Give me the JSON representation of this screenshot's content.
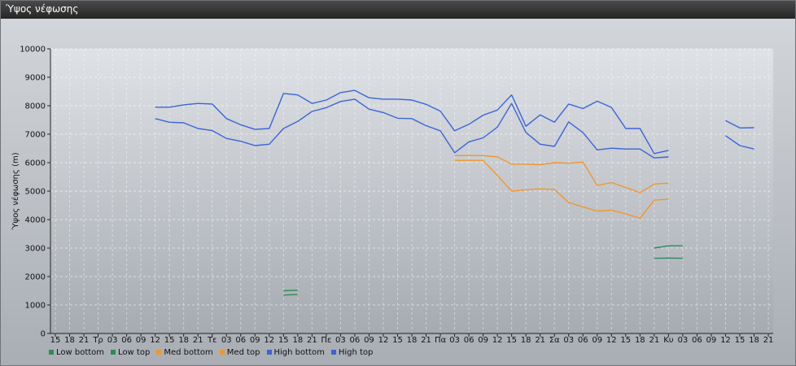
{
  "window": {
    "title": "Ύψος νέφωσης"
  },
  "colors": {
    "low": "#2e8b57",
    "med": "#f0962e",
    "high": "#3b64d8"
  },
  "chart_data": {
    "type": "line",
    "title": "",
    "ylabel": "Ύψος νέφωσης (m)",
    "xlabel": "",
    "ylim": [
      0,
      10000
    ],
    "yticks": [
      0,
      1000,
      2000,
      3000,
      4000,
      5000,
      6000,
      7000,
      8000,
      9000,
      10000
    ],
    "grid": true,
    "legend_position": "bottom-left",
    "x_labels": [
      "15",
      "18",
      "21",
      "Τρ",
      "03",
      "06",
      "09",
      "12",
      "15",
      "18",
      "21",
      "Τε",
      "03",
      "06",
      "09",
      "12",
      "15",
      "18",
      "21",
      "Πε",
      "03",
      "06",
      "09",
      "12",
      "15",
      "18",
      "21",
      "Πα",
      "03",
      "06",
      "09",
      "12",
      "15",
      "18",
      "21",
      "Σα",
      "03",
      "06",
      "09",
      "12",
      "15",
      "18",
      "21",
      "Κυ",
      "03",
      "06",
      "09",
      "12",
      "15",
      "18",
      "21"
    ],
    "series": [
      {
        "name": "Low bottom",
        "color": "#2e8b57",
        "segments": [
          [
            [
              16,
              1350
            ],
            [
              17,
              1370
            ]
          ],
          [
            [
              42,
              2640
            ],
            [
              43,
              2650
            ],
            [
              44,
              2640
            ]
          ]
        ]
      },
      {
        "name": "Low top",
        "color": "#2e8b57",
        "segments": [
          [
            [
              16,
              1500
            ],
            [
              17,
              1520
            ]
          ],
          [
            [
              42,
              3000
            ],
            [
              43,
              3080
            ],
            [
              44,
              3080
            ]
          ]
        ]
      },
      {
        "name": "Med bottom",
        "color": "#f0962e",
        "segments": [
          [
            [
              28,
              6080
            ],
            [
              29,
              6080
            ],
            [
              30,
              6080
            ],
            [
              31,
              5550
            ],
            [
              32,
              5000
            ],
            [
              33,
              5050
            ],
            [
              34,
              5080
            ],
            [
              35,
              5060
            ],
            [
              36,
              4600
            ],
            [
              37,
              4450
            ],
            [
              38,
              4300
            ],
            [
              39,
              4330
            ],
            [
              40,
              4200
            ],
            [
              41,
              4050
            ],
            [
              42,
              4680
            ],
            [
              43,
              4720
            ]
          ]
        ]
      },
      {
        "name": "Med top",
        "color": "#f0962e",
        "segments": [
          [
            [
              28,
              6250
            ],
            [
              29,
              6250
            ],
            [
              30,
              6250
            ],
            [
              31,
              6200
            ],
            [
              32,
              5950
            ],
            [
              33,
              5950
            ],
            [
              34,
              5930
            ],
            [
              35,
              6000
            ],
            [
              36,
              5980
            ],
            [
              37,
              6020
            ],
            [
              38,
              5200
            ],
            [
              39,
              5300
            ],
            [
              40,
              5130
            ],
            [
              41,
              4950
            ],
            [
              42,
              5250
            ],
            [
              43,
              5280
            ]
          ]
        ]
      },
      {
        "name": "High bottom",
        "color": "#3b64d8",
        "segments": [
          [
            [
              7,
              7550
            ],
            [
              8,
              7420
            ],
            [
              9,
              7400
            ],
            [
              10,
              7200
            ],
            [
              11,
              7130
            ],
            [
              12,
              6850
            ],
            [
              13,
              6750
            ],
            [
              14,
              6600
            ],
            [
              15,
              6650
            ],
            [
              16,
              7200
            ],
            [
              17,
              7450
            ],
            [
              18,
              7800
            ],
            [
              19,
              7930
            ],
            [
              20,
              8150
            ],
            [
              21,
              8230
            ],
            [
              22,
              7880
            ],
            [
              23,
              7760
            ],
            [
              24,
              7560
            ],
            [
              25,
              7550
            ],
            [
              26,
              7300
            ],
            [
              27,
              7120
            ],
            [
              28,
              6350
            ],
            [
              29,
              6730
            ],
            [
              30,
              6870
            ],
            [
              31,
              7250
            ],
            [
              32,
              8080
            ],
            [
              33,
              7060
            ],
            [
              34,
              6650
            ],
            [
              35,
              6570
            ],
            [
              36,
              7430
            ],
            [
              37,
              7060
            ],
            [
              38,
              6450
            ],
            [
              39,
              6510
            ],
            [
              40,
              6480
            ],
            [
              41,
              6480
            ],
            [
              42,
              6170
            ],
            [
              43,
              6200
            ]
          ],
          [
            [
              47,
              6950
            ],
            [
              48,
              6600
            ],
            [
              49,
              6480
            ]
          ]
        ]
      },
      {
        "name": "High top",
        "color": "#3b64d8",
        "segments": [
          [
            [
              7,
              7950
            ],
            [
              8,
              7950
            ],
            [
              9,
              8030
            ],
            [
              10,
              8080
            ],
            [
              11,
              8060
            ],
            [
              12,
              7550
            ],
            [
              13,
              7330
            ],
            [
              14,
              7170
            ],
            [
              15,
              7200
            ],
            [
              16,
              8430
            ],
            [
              17,
              8380
            ],
            [
              18,
              8080
            ],
            [
              19,
              8200
            ],
            [
              20,
              8460
            ],
            [
              21,
              8540
            ],
            [
              22,
              8280
            ],
            [
              23,
              8230
            ],
            [
              24,
              8230
            ],
            [
              25,
              8200
            ],
            [
              26,
              8050
            ],
            [
              27,
              7810
            ],
            [
              28,
              7120
            ],
            [
              29,
              7350
            ],
            [
              30,
              7670
            ],
            [
              31,
              7850
            ],
            [
              32,
              8380
            ],
            [
              33,
              7280
            ],
            [
              34,
              7680
            ],
            [
              35,
              7420
            ],
            [
              36,
              8060
            ],
            [
              37,
              7900
            ],
            [
              38,
              8160
            ],
            [
              39,
              7940
            ],
            [
              40,
              7200
            ],
            [
              41,
              7200
            ],
            [
              42,
              6320
            ],
            [
              43,
              6430
            ]
          ],
          [
            [
              47,
              7480
            ],
            [
              48,
              7220
            ],
            [
              49,
              7230
            ]
          ]
        ]
      }
    ]
  }
}
